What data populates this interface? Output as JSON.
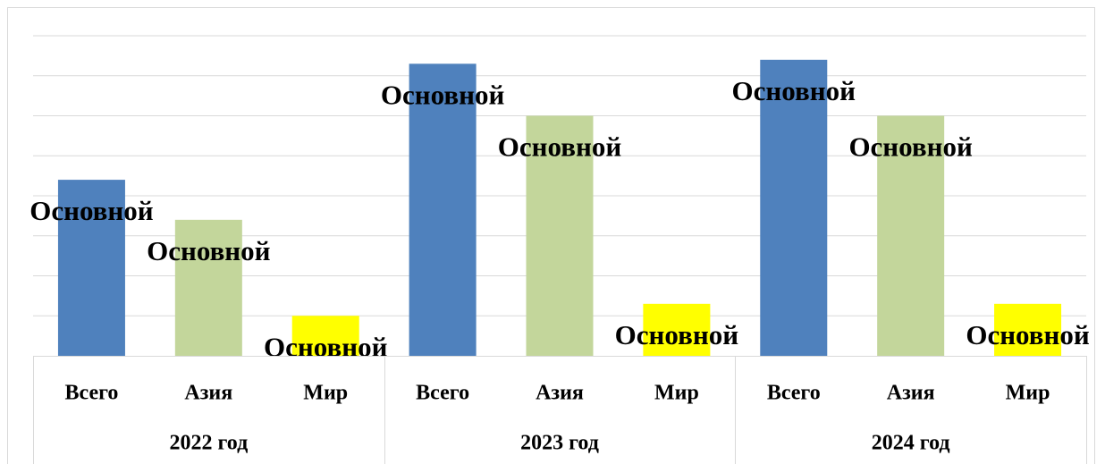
{
  "chart_data": {
    "type": "bar",
    "categories": [
      "2022 год",
      "2023 год",
      "2024 год"
    ],
    "series": [
      {
        "name": "Всего",
        "color": "#4f81bd",
        "values": [
          4.4,
          7.3,
          7.4
        ],
        "value_labels": [
          "Основной",
          "Основной",
          "Основной"
        ]
      },
      {
        "name": "Азия",
        "color": "#c3d69b",
        "values": [
          3.4,
          6.0,
          6.0
        ],
        "value_labels": [
          "Основной",
          "Основной",
          "Основной"
        ]
      },
      {
        "name": "Мир",
        "color": "#ffff00",
        "values": [
          1.0,
          1.3,
          1.3
        ],
        "value_labels": [
          "Основной",
          "Основной",
          "Основной"
        ]
      }
    ],
    "ylim": [
      0,
      8
    ],
    "yticks": [
      1,
      2,
      3,
      4,
      5,
      6,
      7,
      8
    ],
    "grid": true
  }
}
